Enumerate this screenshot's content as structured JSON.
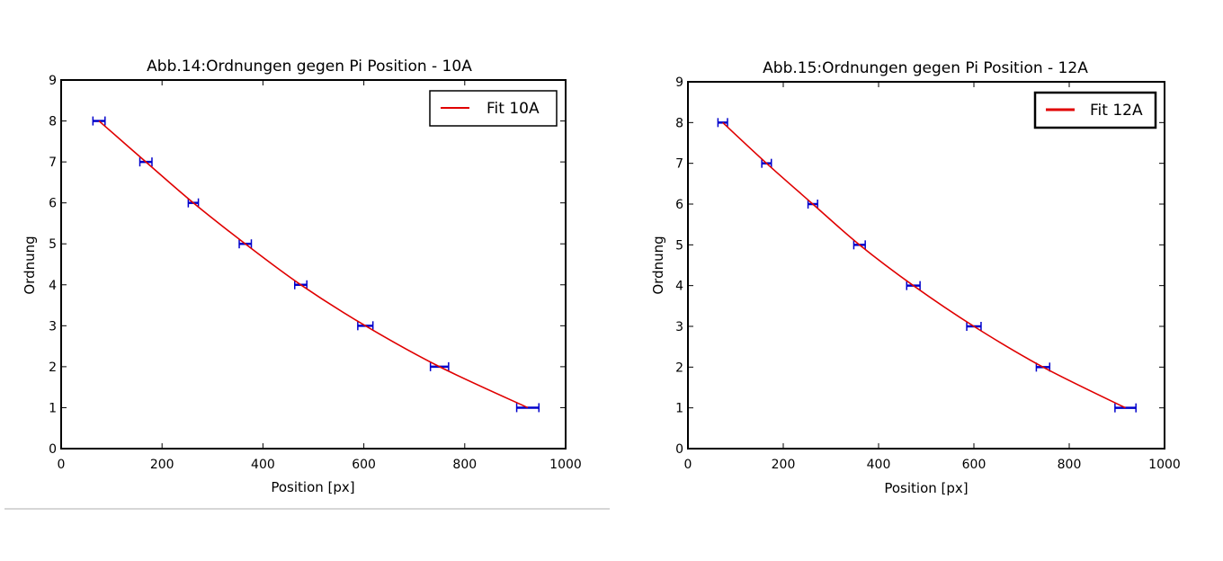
{
  "chart_data": [
    {
      "type": "scatter",
      "title": "Abb.14:Ordnungen gegen Pi Position - 10A",
      "xlabel": "Position [px]",
      "ylabel": "Ordnung",
      "xlim": [
        0,
        1000
      ],
      "ylim": [
        0,
        9
      ],
      "x_ticks": [
        "0",
        "200",
        "400",
        "600",
        "800",
        "1000"
      ],
      "y_ticks": [
        "0",
        "1",
        "2",
        "3",
        "4",
        "5",
        "6",
        "7",
        "8",
        "9"
      ],
      "grid": false,
      "legend_position": "top-right",
      "points": [
        {
          "x": 75,
          "y": 8,
          "xerr": 12
        },
        {
          "x": 168,
          "y": 7,
          "xerr": 12
        },
        {
          "x": 262,
          "y": 6,
          "xerr": 10
        },
        {
          "x": 365,
          "y": 5,
          "xerr": 12
        },
        {
          "x": 475,
          "y": 4,
          "xerr": 12
        },
        {
          "x": 603,
          "y": 3,
          "xerr": 15
        },
        {
          "x": 750,
          "y": 2,
          "xerr": 18
        },
        {
          "x": 925,
          "y": 1,
          "xerr": 22
        }
      ],
      "fit": {
        "name": "Fit 10A",
        "color": "#e00000",
        "x": [
          75,
          168,
          262,
          365,
          475,
          603,
          750,
          925
        ],
        "y": [
          8,
          7,
          6,
          5,
          4,
          3,
          2,
          1
        ]
      },
      "marker_color": "#0000cc"
    },
    {
      "type": "scatter",
      "title": "Abb.15:Ordnungen gegen Pi Position - 12A",
      "xlabel": "Position [px]",
      "ylabel": "Ordnung",
      "xlim": [
        0,
        1000
      ],
      "ylim": [
        0,
        9
      ],
      "x_ticks": [
        "0",
        "200",
        "400",
        "600",
        "800",
        "1000"
      ],
      "y_ticks": [
        "0",
        "1",
        "2",
        "3",
        "4",
        "5",
        "6",
        "7",
        "8",
        "9"
      ],
      "grid": false,
      "legend_position": "top-right",
      "points": [
        {
          "x": 73,
          "y": 8,
          "xerr": 10
        },
        {
          "x": 165,
          "y": 7,
          "xerr": 10
        },
        {
          "x": 262,
          "y": 6,
          "xerr": 10
        },
        {
          "x": 360,
          "y": 5,
          "xerr": 12
        },
        {
          "x": 473,
          "y": 4,
          "xerr": 14
        },
        {
          "x": 600,
          "y": 3,
          "xerr": 15
        },
        {
          "x": 745,
          "y": 2,
          "xerr": 14
        },
        {
          "x": 918,
          "y": 1,
          "xerr": 22
        }
      ],
      "fit": {
        "name": "Fit 12A",
        "color": "#e00000",
        "x": [
          73,
          165,
          262,
          360,
          473,
          600,
          745,
          918
        ],
        "y": [
          8,
          7,
          6,
          5,
          4,
          3,
          2,
          1
        ]
      },
      "marker_color": "#0000cc"
    }
  ]
}
